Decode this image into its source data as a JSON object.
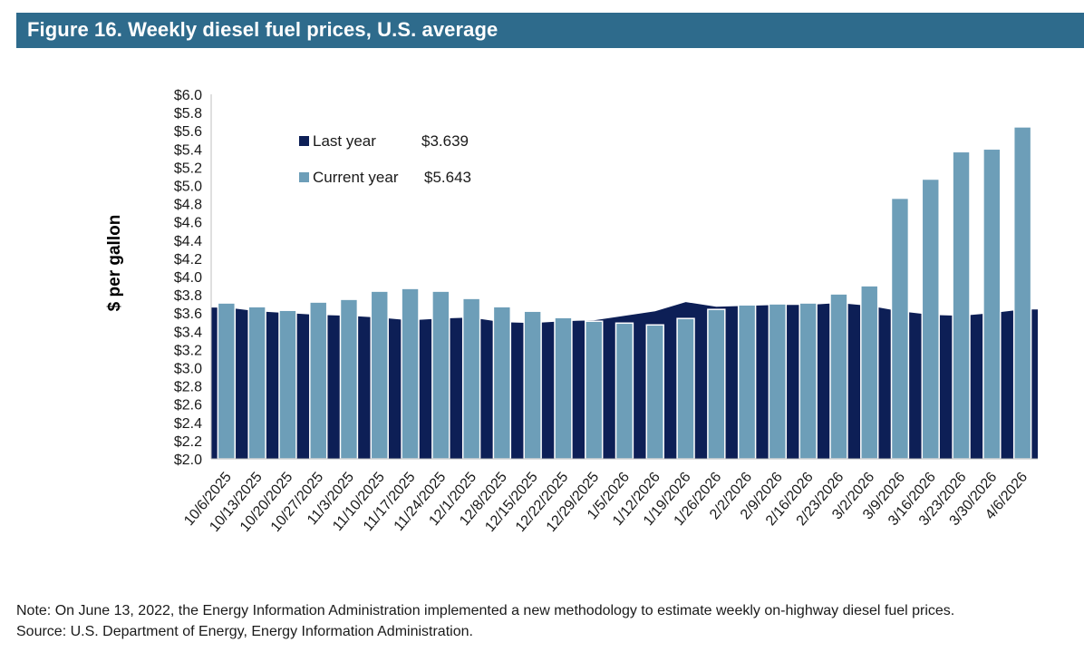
{
  "header": {
    "title": "Figure 16. Weekly diesel fuel prices, U.S. average"
  },
  "chart_data": {
    "type": "bar",
    "ylabel": "$ per gallon",
    "ylim": [
      2.0,
      6.0
    ],
    "ytick_step": 0.2,
    "ytick_prefix": "$",
    "categories": [
      "10/6/2025",
      "10/13/2025",
      "10/20/2025",
      "10/27/2025",
      "11/3/2025",
      "11/10/2025",
      "11/17/2025",
      "11/24/2025",
      "12/1/2025",
      "12/8/2025",
      "12/15/2025",
      "12/22/2025",
      "12/29/2025",
      "1/5/2026",
      "1/12/2026",
      "1/19/2026",
      "1/26/2026",
      "2/2/2026",
      "2/9/2026",
      "2/16/2026",
      "2/23/2026",
      "3/2/2026",
      "3/9/2026",
      "3/16/2026",
      "3/23/2026",
      "3/30/2026",
      "4/6/2026"
    ],
    "series": [
      {
        "name": "Last year",
        "kind": "area",
        "color": "#0d1f56",
        "values": [
          3.66,
          3.62,
          3.6,
          3.58,
          3.57,
          3.55,
          3.52,
          3.54,
          3.55,
          3.5,
          3.49,
          3.51,
          3.52,
          3.57,
          3.62,
          3.72,
          3.67,
          3.68,
          3.69,
          3.69,
          3.71,
          3.68,
          3.62,
          3.58,
          3.57,
          3.6,
          3.639
        ]
      },
      {
        "name": "Current year",
        "kind": "bar",
        "color": "#6d9eb8",
        "values": [
          3.71,
          3.67,
          3.63,
          3.72,
          3.75,
          3.84,
          3.87,
          3.84,
          3.76,
          3.67,
          3.62,
          3.55,
          3.51,
          3.49,
          3.47,
          3.54,
          3.64,
          3.69,
          3.7,
          3.71,
          3.81,
          3.9,
          4.86,
          5.07,
          5.37,
          5.4,
          5.643
        ]
      }
    ],
    "legend": {
      "position": "top-left",
      "items": [
        {
          "label": "Last year",
          "value": "$3.639",
          "color": "#0d1f56"
        },
        {
          "label": "Current year",
          "value": "$5.643",
          "color": "#6d9eb8"
        }
      ]
    }
  },
  "footer": {
    "note": "Note: On June 13, 2022, the Energy Information Administration implemented a new methodology to estimate weekly on-highway diesel fuel prices.",
    "source": "Source: U.S. Department of Energy, Energy Information Administration."
  }
}
